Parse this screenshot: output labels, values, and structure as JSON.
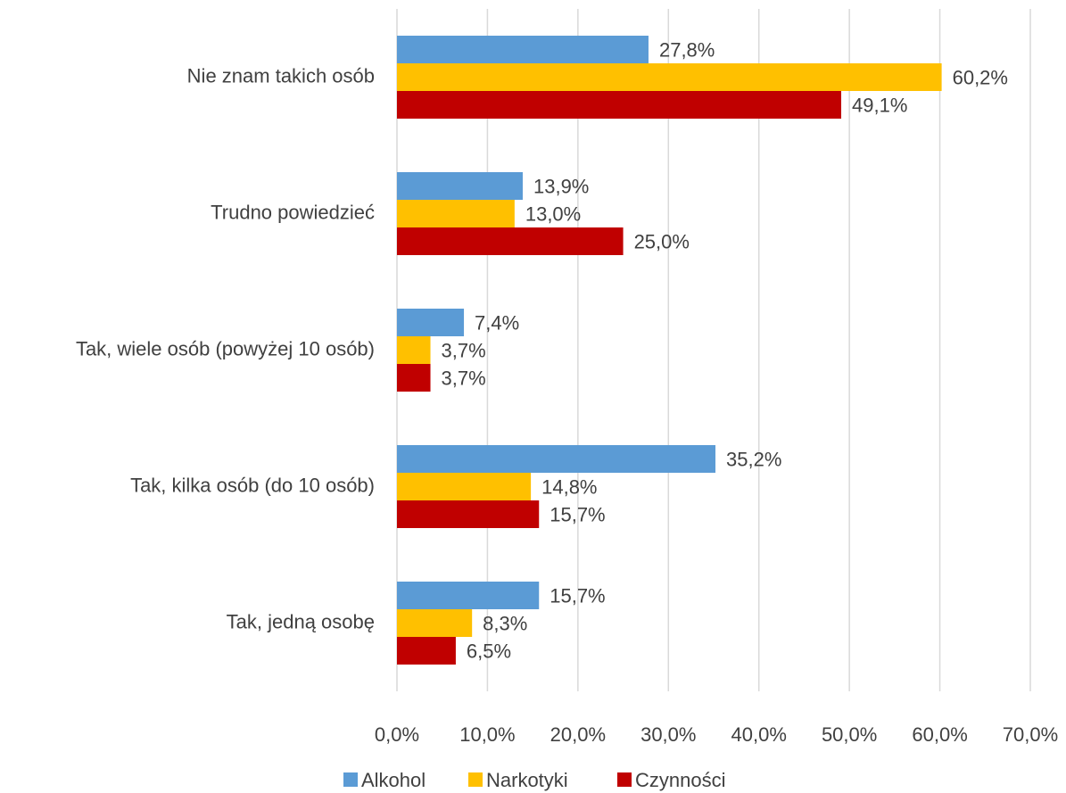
{
  "chart_data": {
    "type": "barh",
    "categories": [
      "Nie znam takich osób",
      "Trudno powiedzieć",
      "Tak, wiele osób (powyżej 10 osób)",
      "Tak, kilka osób (do 10 osób)",
      "Tak, jedną osobę"
    ],
    "series": [
      {
        "name": "Alkohol",
        "color": "#5b9bd5",
        "values": [
          27.8,
          13.9,
          7.4,
          35.2,
          15.7
        ],
        "value_labels": [
          "27,8%",
          "13,9%",
          "7,4%",
          "35,2%",
          "15,7%"
        ]
      },
      {
        "name": "Narkotyki",
        "color": "#ffc000",
        "values": [
          60.2,
          13.0,
          3.7,
          14.8,
          8.3
        ],
        "value_labels": [
          "60,2%",
          "13,0%",
          "3,7%",
          "14,8%",
          "8,3%"
        ]
      },
      {
        "name": "Czynności",
        "color": "#c00000",
        "values": [
          49.1,
          25.0,
          3.7,
          15.7,
          6.5
        ],
        "value_labels": [
          "49,1%",
          "25,0%",
          "3,7%",
          "15,7%",
          "6,5%"
        ]
      }
    ],
    "xlim": [
      0,
      70
    ],
    "xticks": [
      {
        "value": 0,
        "label": "0,0%"
      },
      {
        "value": 10,
        "label": "10,0%"
      },
      {
        "value": 20,
        "label": "20,0%"
      },
      {
        "value": 30,
        "label": "30,0%"
      },
      {
        "value": 40,
        "label": "40,0%"
      },
      {
        "value": 50,
        "label": "50,0%"
      },
      {
        "value": 60,
        "label": "60,0%"
      },
      {
        "value": 70,
        "label": "70,0%"
      }
    ],
    "grid": true,
    "legend": "bottom"
  }
}
